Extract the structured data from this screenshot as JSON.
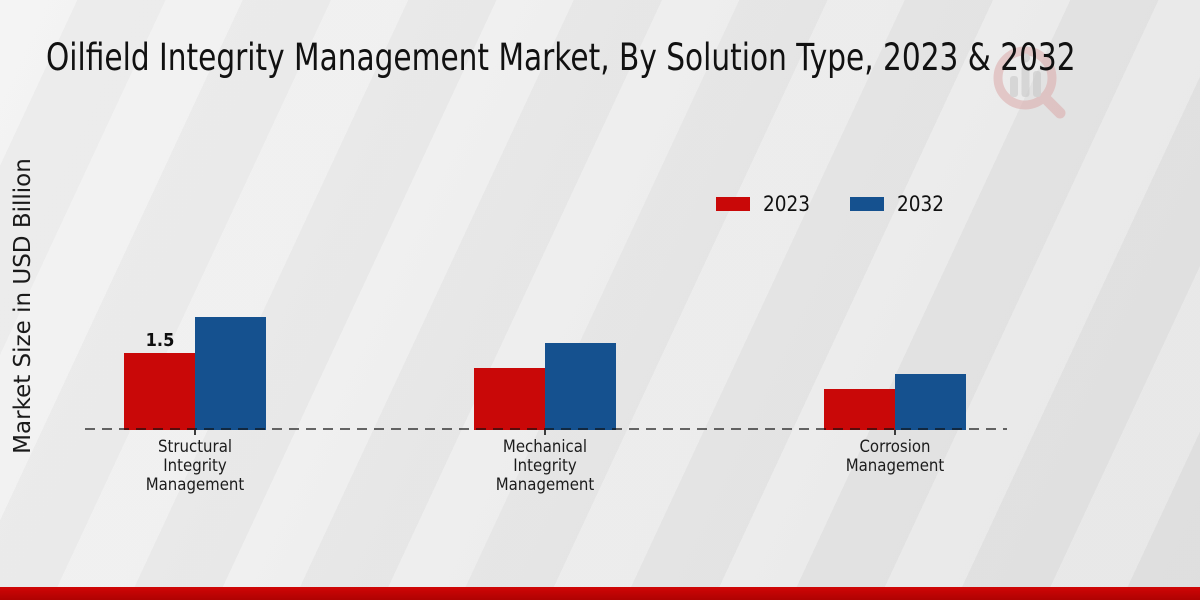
{
  "title": "Oilfield Integrity Management Market, By Solution Type, 2023 & 2032",
  "ylabel": "Market Size in USD Billion",
  "legend": [
    {
      "label": "2023",
      "color": "#c90808"
    },
    {
      "label": "2032",
      "color": "#15518f"
    }
  ],
  "colors": {
    "bar_2023": "#c90808",
    "bar_2032": "#15518f",
    "footer_accent": "#c20404",
    "background": "#e9e9e9"
  },
  "watermark_icon": "magnifier-bar-chart-logo",
  "chart_data": {
    "type": "bar",
    "title": "Oilfield Integrity Management Market, By Solution Type, 2023 & 2032",
    "xlabel": "",
    "ylabel": "Market Size in USD Billion",
    "categories": [
      "Structural Integrity Management",
      "Mechanical Integrity Management",
      "Corrosion Management"
    ],
    "category_lines": [
      [
        "Structural",
        "Integrity",
        "Management"
      ],
      [
        "Mechanical",
        "Integrity",
        "Management"
      ],
      [
        "Corrosion",
        "Management"
      ]
    ],
    "series": [
      {
        "name": "2023",
        "color": "#c90808",
        "values": [
          1.5,
          1.2,
          0.8
        ]
      },
      {
        "name": "2032",
        "color": "#15518f",
        "values": [
          2.2,
          1.7,
          1.1
        ]
      }
    ],
    "bar_labels": [
      {
        "series": "2023",
        "category_index": 0,
        "text": "1.5"
      }
    ],
    "ylim": [
      0,
      2.4
    ],
    "grid": false,
    "axis_style": "dashed-baseline-only",
    "legend_position": "upper-right-inside"
  }
}
